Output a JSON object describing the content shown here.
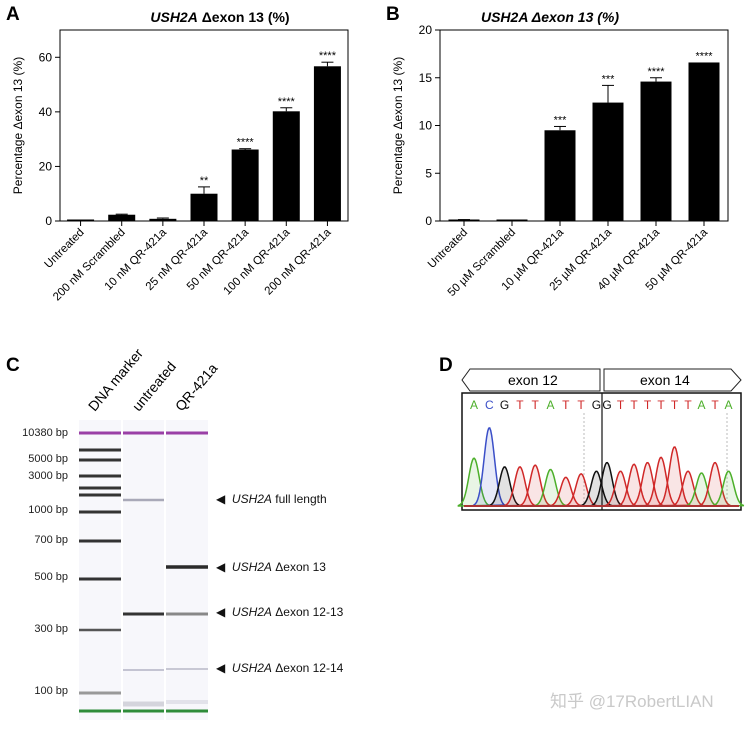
{
  "panels": {
    "a": "A",
    "b": "B",
    "c": "C",
    "d": "D"
  },
  "chart_data": [
    {
      "type": "bar",
      "title_italic": "USH2A",
      "title_rest": " Δexon 13 (%)",
      "ylabel": "Percentage Δexon 13 (%)",
      "xlabel": "",
      "ylim": [
        0,
        70
      ],
      "yticks": [
        0,
        20,
        40,
        60
      ],
      "categories": [
        "Untreated",
        "200 nM Scrambled",
        "10 nM QR-421a",
        "25 nM QR-421a",
        "50 nM QR-421a",
        "100 nM QR-421a",
        "200 nM QR-421a"
      ],
      "values": [
        0,
        2.3,
        0.8,
        10.0,
        26.2,
        40.2,
        56.7
      ],
      "errors": [
        0,
        0.2,
        0.3,
        2.5,
        0.3,
        1.3,
        1.5
      ],
      "significance": [
        "",
        "",
        "",
        "**",
        "****",
        "****",
        "****"
      ]
    },
    {
      "type": "bar",
      "title_italic": "USH2A",
      "title_rest": " Δexon 13 (%)",
      "ylabel": "Percentage Δexon 13 (%)",
      "xlabel": "",
      "ylim": [
        0,
        20
      ],
      "yticks": [
        0,
        5,
        10,
        15,
        20
      ],
      "categories": [
        "Untreated",
        "50 µM Scrambled",
        "10 µM QR-421a",
        "25 µM QR-421a",
        "40 µM QR-421a",
        "50 µM QR-421a"
      ],
      "values": [
        0.1,
        0.05,
        9.5,
        12.4,
        14.6,
        16.6
      ],
      "errors": [
        0.05,
        0.05,
        0.4,
        1.8,
        0.4,
        0
      ],
      "significance": [
        "",
        "",
        "***",
        "***",
        "****",
        "****"
      ]
    }
  ],
  "gel": {
    "lanes": [
      "DNA marker",
      "untreated",
      "QR-421a"
    ],
    "size_labels": [
      "10380 bp",
      "5000 bp",
      "3000 bp",
      "1000 bp",
      "700 bp",
      "500 bp",
      "300 bp",
      "100 bp"
    ],
    "annotations": [
      {
        "italic": "USH2A",
        "rest": " full length"
      },
      {
        "italic": "USH2A",
        "rest": " Δexon 13"
      },
      {
        "italic": "USH2A",
        "rest": " Δexon 12-13"
      },
      {
        "italic": "USH2A",
        "rest": " Δexon 12-14"
      }
    ]
  },
  "chromatogram": {
    "left_exon": "exon 12",
    "right_exon": "exon 14",
    "bases_left": [
      "A",
      "C",
      "G",
      "T",
      "T",
      "A",
      "T",
      "T",
      "G"
    ],
    "bases_right": [
      "G",
      "T",
      "T",
      "T",
      "T",
      "T",
      "T",
      "A",
      "T",
      "A"
    ],
    "peak_heights_left": [
      0.55,
      0.9,
      0.45,
      0.45,
      0.47,
      0.42,
      0.33,
      0.37,
      0.4
    ],
    "peak_heights_right": [
      0.5,
      0.4,
      0.48,
      0.5,
      0.56,
      0.68,
      0.4,
      0.38,
      0.5,
      0.4
    ],
    "colors": {
      "A": "#4caf2a",
      "C": "#3b4fc8",
      "G": "#111111",
      "T": "#d02828"
    }
  },
  "watermark": "知乎 @17RobertLIAN"
}
